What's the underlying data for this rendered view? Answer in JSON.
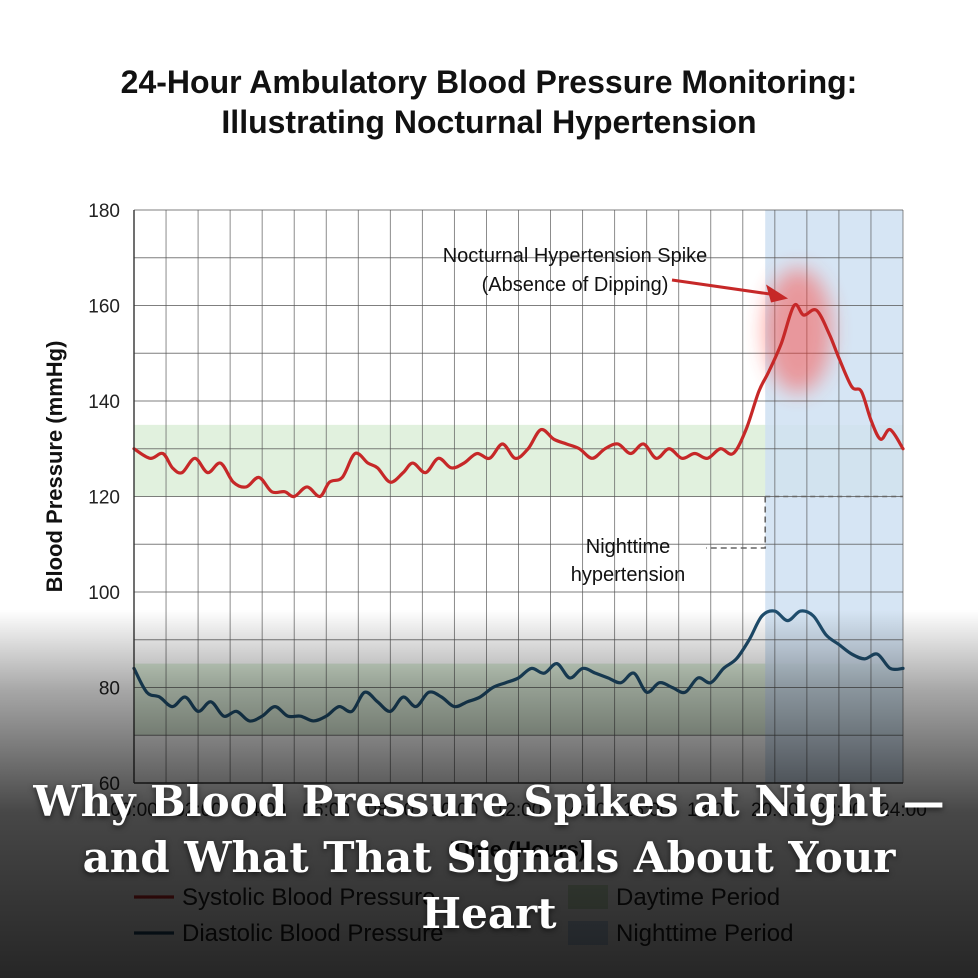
{
  "chart_data": {
    "type": "line",
    "title": [
      "24-Hour Ambulatory Blood Pressure Monitoring:",
      "Illustrating Nocturnal Hypertension"
    ],
    "xlabel": "Time (Hours)",
    "ylabel": "Blood Pressure (mmHg)",
    "x_ticks": [
      "00:00",
      "02:00",
      "04:00",
      "06:00",
      "08:00",
      "10:00",
      "12:00",
      "14:00",
      "16:00",
      "18:00",
      "20:00",
      "22:00",
      "24:00"
    ],
    "xlim": [
      0,
      24
    ],
    "ylim": [
      60,
      180
    ],
    "y_ticks": [
      60,
      80,
      100,
      120,
      140,
      160,
      180
    ],
    "grid": true,
    "bands": [
      {
        "name": "Daytime Period",
        "type": "y-range",
        "from": 120,
        "to": 135,
        "color": "#dcefd8"
      },
      {
        "name": "Daytime Period",
        "type": "y-range",
        "from": 70,
        "to": 85,
        "color": "#dcefd8"
      },
      {
        "name": "Nighttime Period",
        "type": "x-range",
        "from": 19.7,
        "to": 24,
        "color": "#cfe1f2"
      }
    ],
    "reference_line": {
      "y": 120,
      "from_x": 19.7,
      "to_x": 24,
      "style": "dashed"
    },
    "series": [
      {
        "name": "Systolic Blood Pressure",
        "color": "#c62828",
        "x": [
          0,
          0.5,
          0.9,
          1.2,
          1.5,
          1.9,
          2.3,
          2.7,
          3.1,
          3.5,
          3.9,
          4.3,
          4.7,
          5.0,
          5.4,
          5.8,
          6.1,
          6.5,
          6.9,
          7.3,
          7.6,
          8.0,
          8.4,
          8.7,
          9.1,
          9.5,
          9.9,
          10.3,
          10.7,
          11.1,
          11.5,
          11.9,
          12.3,
          12.7,
          13.1,
          13.5,
          13.9,
          14.3,
          14.7,
          15.1,
          15.5,
          15.9,
          16.3,
          16.7,
          17.1,
          17.5,
          17.9,
          18.3,
          18.7,
          19.1,
          19.5,
          19.8,
          20.2,
          20.6,
          20.9,
          21.3,
          21.7,
          22.0,
          22.4,
          22.7,
          23.0,
          23.3,
          23.6,
          24.0
        ],
        "values": [
          130,
          128,
          129,
          126,
          125,
          128,
          125,
          127,
          123,
          122,
          124,
          121,
          121,
          120,
          122,
          120,
          123,
          124,
          129,
          127,
          126,
          123,
          125,
          127,
          125,
          128,
          126,
          127,
          129,
          128,
          131,
          128,
          130,
          134,
          132,
          131,
          130,
          128,
          130,
          131,
          129,
          131,
          128,
          130,
          128,
          129,
          128,
          130,
          129,
          134,
          142,
          146,
          152,
          160,
          158,
          159,
          154,
          149,
          143,
          142,
          136,
          132,
          134,
          130
        ]
      },
      {
        "name": "Diastolic Blood Pressure",
        "color": "#1f4e6e",
        "x": [
          0,
          0.4,
          0.8,
          1.2,
          1.6,
          2.0,
          2.4,
          2.8,
          3.2,
          3.6,
          4.0,
          4.4,
          4.8,
          5.2,
          5.6,
          6.0,
          6.4,
          6.8,
          7.2,
          7.6,
          8.0,
          8.4,
          8.8,
          9.2,
          9.6,
          10.0,
          10.4,
          10.8,
          11.2,
          11.6,
          12.0,
          12.4,
          12.8,
          13.2,
          13.6,
          14.0,
          14.4,
          14.8,
          15.2,
          15.6,
          16.0,
          16.4,
          16.8,
          17.2,
          17.6,
          18.0,
          18.4,
          18.8,
          19.2,
          19.6,
          20.0,
          20.4,
          20.8,
          21.2,
          21.6,
          22.0,
          22.4,
          22.8,
          23.2,
          23.6,
          24.0
        ],
        "values": [
          84,
          79,
          78,
          76,
          78,
          75,
          77,
          74,
          75,
          73,
          74,
          76,
          74,
          74,
          73,
          74,
          76,
          75,
          79,
          77,
          75,
          78,
          76,
          79,
          78,
          76,
          77,
          78,
          80,
          81,
          82,
          84,
          83,
          85,
          82,
          84,
          83,
          82,
          81,
          83,
          79,
          81,
          80,
          79,
          82,
          81,
          84,
          86,
          90,
          95,
          96,
          94,
          96,
          95,
          91,
          89,
          87,
          86,
          87,
          84,
          84
        ]
      }
    ],
    "annotations": [
      {
        "lines": [
          "Nocturnal Hypertension Spike",
          "(Absence of Dipping)"
        ],
        "points_to_x": 20.6,
        "points_to_y": 160
      },
      {
        "lines": [
          "Nighttime",
          "hypertension"
        ]
      }
    ],
    "legend": {
      "placement": "bottom",
      "items": [
        {
          "label": "Systolic Blood Pressure",
          "kind": "line",
          "color": "#c62828"
        },
        {
          "label": "Daytime Period",
          "kind": "patch",
          "color": "#cfe7c8"
        },
        {
          "label": "Diastolic Blood Pressure",
          "kind": "line",
          "color": "#1f4e6e"
        },
        {
          "label": "Nighttime Period",
          "kind": "patch",
          "color": "#c4d9ee"
        }
      ]
    }
  },
  "headline": "Why Blood Pressure Spikes at Night — and What That Signals About Your Heart"
}
